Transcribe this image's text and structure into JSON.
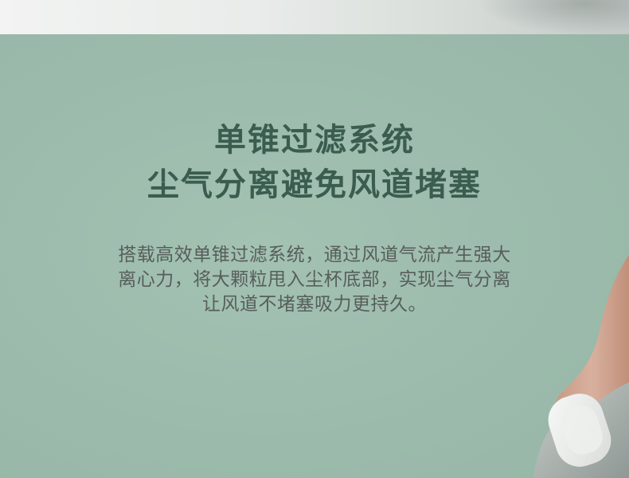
{
  "headline": {
    "line1": "单锥过滤系统",
    "line2": "尘气分离避免风道堵塞"
  },
  "description": {
    "line1": "搭载高效单锥过滤系统，通过风道气流产生强大",
    "line2": "离心力，将大颗粒甩入尘杯底部，实现尘气分离",
    "line3": "让风道不堵塞吸力更持久。"
  },
  "colors": {
    "background": "#9ab9aa",
    "headline": "#3b5d4f",
    "body_text": "#575e5b",
    "top_strip": "#e9ecea"
  }
}
